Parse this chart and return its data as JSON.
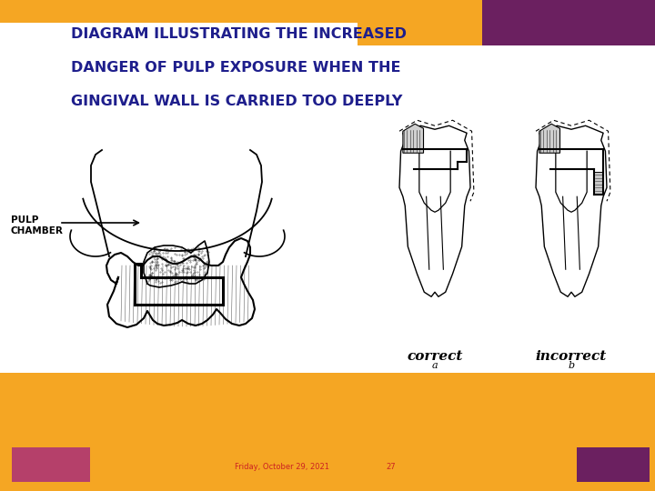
{
  "title_line1": "DIAGRAM ILLUSTRATING THE INCREASED",
  "title_line2": "DANGER OF PULP EXPOSURE WHEN THE",
  "title_line3": "GINGIVAL WALL IS CARRIED TOO DEEPLY",
  "title_color": "#1E1E8C",
  "bg_color": "#F5A623",
  "purple_color": "#6B2060",
  "white": "#FFFFFF",
  "pink_color": "#B5406A",
  "footer_text": "Friday, October 29, 2021",
  "footer_page": "27",
  "footer_color": "#CC2222",
  "pulp_label": "PULP\nCHAMBER",
  "correct_label": "correct",
  "incorrect_label": "incorrect",
  "label_a": "a",
  "label_b": "b"
}
